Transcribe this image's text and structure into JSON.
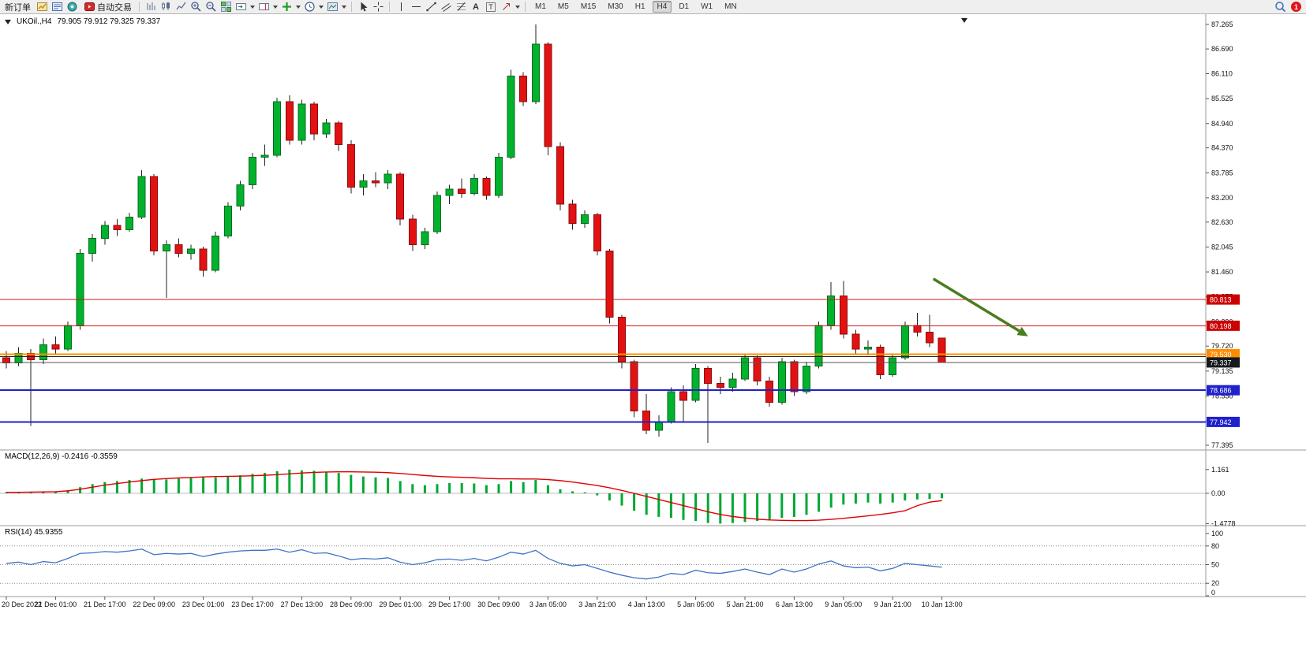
{
  "toolbar": {
    "new_order": "新订单",
    "autotrading": "自动交易",
    "text_tool": "A",
    "label_tool": "T",
    "timeframes": [
      "M1",
      "M5",
      "M15",
      "M30",
      "H1",
      "H4",
      "D1",
      "W1",
      "MN"
    ],
    "active_timeframe": "H4",
    "notification_count": "1"
  },
  "chart": {
    "symbol_period": "UKOil.,H4",
    "quote": "79.905 79.912 79.325 79.337"
  },
  "chart_data": {
    "type": "candlestick",
    "symbol": "UKOil",
    "period": "H4",
    "bull_color": "#00b22c",
    "bear_color": "#e21212",
    "ylim": [
      77.285,
      87.431
    ],
    "price_axis": [
      "87.265",
      "86.690",
      "86.110",
      "85.525",
      "84.940",
      "84.370",
      "83.785",
      "83.200",
      "82.630",
      "82.045",
      "81.460",
      "80.875",
      "80.290",
      "79.720",
      "79.135",
      "78.550",
      "77.965",
      "77.395"
    ],
    "x_labels": [
      "20 Dec 2022",
      "21 Dec 01:00",
      "21 Dec 17:00",
      "22 Dec 09:00",
      "23 Dec 01:00",
      "23 Dec 17:00",
      "27 Dec 13:00",
      "28 Dec 09:00",
      "29 Dec 01:00",
      "29 Dec 17:00",
      "30 Dec 09:00",
      "3 Jan 05:00",
      "3 Jan 21:00",
      "4 Jan 13:00",
      "5 Jan 05:00",
      "5 Jan 21:00",
      "6 Jan 13:00",
      "9 Jan 05:00",
      "9 Jan 21:00",
      "10 Jan 13:00"
    ],
    "x_label_step": 4,
    "ohlc": [
      [
        79.45,
        79.6,
        79.2,
        79.33
      ],
      [
        79.33,
        79.7,
        79.25,
        79.55
      ],
      [
        79.55,
        79.65,
        77.85,
        79.4
      ],
      [
        79.4,
        79.9,
        79.3,
        79.75
      ],
      [
        79.75,
        79.95,
        79.55,
        79.65
      ],
      [
        79.65,
        80.3,
        79.6,
        80.2
      ],
      [
        80.2,
        82.0,
        80.1,
        81.9
      ],
      [
        81.9,
        82.35,
        81.7,
        82.25
      ],
      [
        82.25,
        82.65,
        82.1,
        82.55
      ],
      [
        82.55,
        82.7,
        82.3,
        82.45
      ],
      [
        82.45,
        82.85,
        82.4,
        82.75
      ],
      [
        82.75,
        83.85,
        82.7,
        83.7
      ],
      [
        83.7,
        83.75,
        81.85,
        81.95
      ],
      [
        81.95,
        82.2,
        80.85,
        82.1
      ],
      [
        82.1,
        82.25,
        81.8,
        81.9
      ],
      [
        81.9,
        82.1,
        81.75,
        82.0
      ],
      [
        82.0,
        82.05,
        81.35,
        81.5
      ],
      [
        81.5,
        82.4,
        81.45,
        82.3
      ],
      [
        82.3,
        83.1,
        82.25,
        83.0
      ],
      [
        83.0,
        83.6,
        82.9,
        83.5
      ],
      [
        83.5,
        84.25,
        83.4,
        84.15
      ],
      [
        84.15,
        84.45,
        83.95,
        84.2
      ],
      [
        84.2,
        85.55,
        84.15,
        85.45
      ],
      [
        85.45,
        85.6,
        84.45,
        84.55
      ],
      [
        84.55,
        85.5,
        84.45,
        85.4
      ],
      [
        85.4,
        85.45,
        84.55,
        84.7
      ],
      [
        84.7,
        85.05,
        84.6,
        84.95
      ],
      [
        84.95,
        85.0,
        84.3,
        84.45
      ],
      [
        84.45,
        84.55,
        83.3,
        83.45
      ],
      [
        83.45,
        83.75,
        83.25,
        83.6
      ],
      [
        83.6,
        83.8,
        83.45,
        83.55
      ],
      [
        83.55,
        83.85,
        83.4,
        83.75
      ],
      [
        83.75,
        83.8,
        82.55,
        82.7
      ],
      [
        82.7,
        82.8,
        81.95,
        82.1
      ],
      [
        82.1,
        82.5,
        82.0,
        82.4
      ],
      [
        82.4,
        83.35,
        82.35,
        83.25
      ],
      [
        83.25,
        83.5,
        83.05,
        83.4
      ],
      [
        83.4,
        83.65,
        83.2,
        83.3
      ],
      [
        83.3,
        83.75,
        83.25,
        83.65
      ],
      [
        83.65,
        83.7,
        83.15,
        83.25
      ],
      [
        83.25,
        84.25,
        83.2,
        84.15
      ],
      [
        84.15,
        86.2,
        84.1,
        86.05
      ],
      [
        86.05,
        86.15,
        85.35,
        85.45
      ],
      [
        85.45,
        87.265,
        85.4,
        86.8
      ],
      [
        86.8,
        86.85,
        84.2,
        84.4
      ],
      [
        84.4,
        84.5,
        82.9,
        83.05
      ],
      [
        83.05,
        83.15,
        82.45,
        82.6
      ],
      [
        82.6,
        82.9,
        82.5,
        82.8
      ],
      [
        82.8,
        82.85,
        81.85,
        81.95
      ],
      [
        81.95,
        82.0,
        80.25,
        80.4
      ],
      [
        80.4,
        80.45,
        79.2,
        79.35
      ],
      [
        79.35,
        79.4,
        78.05,
        78.2
      ],
      [
        78.2,
        78.6,
        77.65,
        77.75
      ],
      [
        77.75,
        78.1,
        77.6,
        77.95
      ],
      [
        77.95,
        78.75,
        77.9,
        78.65
      ],
      [
        78.65,
        78.8,
        77.95,
        78.45
      ],
      [
        78.45,
        79.3,
        78.4,
        79.2
      ],
      [
        79.2,
        79.25,
        77.45,
        78.85
      ],
      [
        78.85,
        79.0,
        78.6,
        78.75
      ],
      [
        78.75,
        79.1,
        78.65,
        78.95
      ],
      [
        78.95,
        79.55,
        78.9,
        79.45
      ],
      [
        79.45,
        79.5,
        78.8,
        78.9
      ],
      [
        78.9,
        79.0,
        78.3,
        78.4
      ],
      [
        78.4,
        79.45,
        78.35,
        79.35
      ],
      [
        79.35,
        79.4,
        78.55,
        78.65
      ],
      [
        78.65,
        79.35,
        78.6,
        79.25
      ],
      [
        79.25,
        80.3,
        79.2,
        80.2
      ],
      [
        80.2,
        81.22,
        80.1,
        80.9
      ],
      [
        80.9,
        81.25,
        79.9,
        80.0
      ],
      [
        80.0,
        80.1,
        79.55,
        79.65
      ],
      [
        79.65,
        79.85,
        79.5,
        79.7
      ],
      [
        79.7,
        79.75,
        78.95,
        79.05
      ],
      [
        79.05,
        79.55,
        79.0,
        79.45
      ],
      [
        79.45,
        80.3,
        79.4,
        80.2
      ],
      [
        80.2,
        80.5,
        79.95,
        80.05
      ],
      [
        80.05,
        80.45,
        79.7,
        79.8
      ],
      [
        79.905,
        79.912,
        79.325,
        79.337
      ]
    ],
    "price_lines": [
      {
        "value": 80.813,
        "label": "80.813",
        "color": "#d01818",
        "width": 1,
        "badge_color": "#cc0000"
      },
      {
        "value": 80.198,
        "label": "80.198",
        "color": "#d01818",
        "width": 1,
        "badge_color": "#cc0000"
      },
      {
        "value": 79.53,
        "label": "79.530",
        "color": "#ff8c00",
        "width": 2,
        "badge_color": "#ff8c00"
      },
      {
        "value": 79.47,
        "color": "#222222",
        "width": 1
      },
      {
        "value": 78.686,
        "label": "78.686",
        "color": "#2020cc",
        "width": 2,
        "badge_color": "#2020cc"
      },
      {
        "value": 77.942,
        "label": "77.942",
        "color": "#2020cc",
        "width": 2,
        "badge_color": "#2020cc"
      }
    ],
    "current_price": {
      "value": 79.337,
      "label": "79.337",
      "line_color": "#555555",
      "badge_color": "#15191e"
    },
    "macd": {
      "label": "MACD(12,26,9) -0.2416 -0.3559",
      "axis": [
        "1.161",
        "0.00",
        "-1.4778"
      ],
      "hist_color": "#00a832",
      "signal_color": "#e00000",
      "histogram": [
        0.05,
        0.06,
        0.05,
        0.07,
        0.08,
        0.15,
        0.3,
        0.45,
        0.55,
        0.6,
        0.65,
        0.72,
        0.7,
        0.68,
        0.72,
        0.76,
        0.8,
        0.78,
        0.82,
        0.88,
        0.95,
        1.0,
        1.08,
        1.16,
        1.12,
        1.1,
        1.05,
        1.0,
        0.9,
        0.82,
        0.78,
        0.75,
        0.6,
        0.45,
        0.4,
        0.45,
        0.5,
        0.5,
        0.48,
        0.4,
        0.45,
        0.6,
        0.55,
        0.65,
        0.4,
        0.2,
        0.1,
        0.05,
        -0.1,
        -0.35,
        -0.6,
        -0.85,
        -1.05,
        -1.15,
        -1.2,
        -1.3,
        -1.35,
        -1.45,
        -1.4778,
        -1.45,
        -1.4,
        -1.35,
        -1.3,
        -1.2,
        -1.15,
        -1.05,
        -0.9,
        -0.7,
        -0.55,
        -0.5,
        -0.45,
        -0.5,
        -0.45,
        -0.35,
        -0.3,
        -0.28,
        -0.2416
      ],
      "signal": [
        0.05,
        0.05,
        0.06,
        0.07,
        0.08,
        0.12,
        0.2,
        0.3,
        0.4,
        0.48,
        0.55,
        0.62,
        0.68,
        0.72,
        0.75,
        0.77,
        0.8,
        0.82,
        0.83,
        0.84,
        0.86,
        0.88,
        0.91,
        0.95,
        0.99,
        1.02,
        1.04,
        1.05,
        1.05,
        1.04,
        1.03,
        1.01,
        0.97,
        0.92,
        0.87,
        0.83,
        0.8,
        0.78,
        0.76,
        0.73,
        0.71,
        0.71,
        0.7,
        0.7,
        0.67,
        0.62,
        0.55,
        0.47,
        0.38,
        0.27,
        0.14,
        0.0,
        -0.15,
        -0.3,
        -0.45,
        -0.6,
        -0.75,
        -0.9,
        -1.03,
        -1.13,
        -1.2,
        -1.26,
        -1.3,
        -1.32,
        -1.33,
        -1.33,
        -1.31,
        -1.27,
        -1.22,
        -1.16,
        -1.1,
        -1.03,
        -0.95,
        -0.85,
        -0.6,
        -0.43,
        -0.3559
      ]
    },
    "rsi": {
      "label": "RSI(14) 45.9355",
      "levels": [
        "100",
        "80",
        "50",
        "20",
        "0"
      ],
      "line_color": "#3f72c4",
      "values": [
        52,
        54,
        50,
        55,
        53,
        60,
        68,
        69,
        71,
        70,
        72,
        75,
        66,
        68,
        67,
        68,
        63,
        67,
        70,
        72,
        73,
        73,
        75,
        70,
        74,
        68,
        69,
        64,
        58,
        60,
        59,
        61,
        54,
        50,
        53,
        58,
        59,
        57,
        60,
        56,
        62,
        70,
        67,
        73,
        60,
        52,
        48,
        50,
        44,
        38,
        33,
        29,
        27,
        30,
        36,
        34,
        41,
        37,
        36,
        39,
        43,
        38,
        34,
        43,
        38,
        43,
        51,
        56,
        48,
        45,
        46,
        40,
        44,
        52,
        50,
        48,
        45.9355
      ]
    },
    "trend_arrow": {
      "color": "#4a7d1f",
      "from": {
        "index": 75.3,
        "price": 81.3
      },
      "to": {
        "index": 83,
        "price": 79.95
      }
    }
  }
}
